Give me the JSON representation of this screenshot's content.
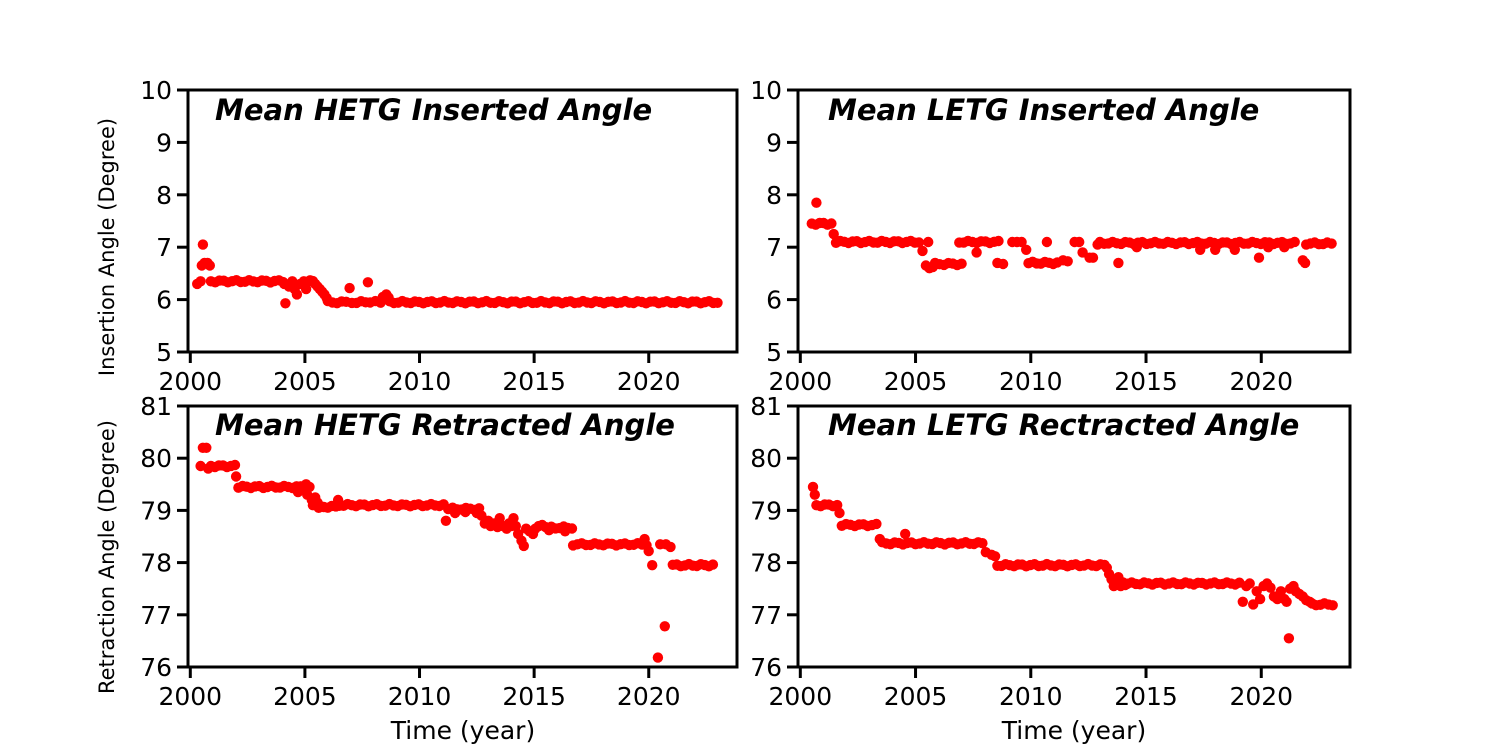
{
  "style": {
    "background": "#ffffff",
    "axis_color": "#000000",
    "marker_color": "#ff0000",
    "marker_radius": 5.2,
    "spine_width": 3,
    "tick_length": 11
  },
  "chart_data": [
    {
      "id": "hetg-inserted",
      "type": "scatter",
      "title": "Mean HETG Inserted Angle",
      "ylabel": "Insertion Angle (Degree)",
      "series_name": "Mean HETG inserted angle",
      "xlim": [
        1999.9,
        2023.85
      ],
      "ylim": [
        5,
        10
      ],
      "xticks": [
        2000,
        2005,
        2010,
        2015,
        2020
      ],
      "yticks": [
        5,
        6,
        7,
        8,
        9,
        10
      ],
      "runs": [
        [
          2000.9,
          2004.05,
          6.35
        ],
        [
          2005.1,
          2005.35,
          6.35
        ],
        [
          2006.0,
          2006.8,
          5.95
        ],
        [
          2007.05,
          2007.65,
          5.95
        ],
        [
          2007.85,
          2008.3,
          5.95
        ],
        [
          2008.7,
          2023.0,
          5.95
        ]
      ],
      "points": [
        [
          2000.3,
          6.3
        ],
        [
          2000.45,
          6.35
        ],
        [
          2000.5,
          6.65
        ],
        [
          2000.55,
          7.05
        ],
        [
          2000.62,
          6.7
        ],
        [
          2000.75,
          6.7
        ],
        [
          2000.85,
          6.65
        ],
        [
          2004.1,
          6.3
        ],
        [
          2004.15,
          5.93
        ],
        [
          2004.3,
          6.25
        ],
        [
          2004.45,
          6.35
        ],
        [
          2004.55,
          6.2
        ],
        [
          2004.65,
          6.1
        ],
        [
          2004.8,
          6.3
        ],
        [
          2004.95,
          6.35
        ],
        [
          2005.05,
          6.2
        ],
        [
          2005.45,
          6.3
        ],
        [
          2005.55,
          6.25
        ],
        [
          2005.65,
          6.2
        ],
        [
          2005.75,
          6.15
        ],
        [
          2005.85,
          6.1
        ],
        [
          2005.95,
          6.03
        ],
        [
          2006.95,
          6.22
        ],
        [
          2007.75,
          6.33
        ],
        [
          2008.4,
          6.05
        ],
        [
          2008.55,
          6.1
        ],
        [
          2008.65,
          6.04
        ]
      ]
    },
    {
      "id": "letg-inserted",
      "type": "scatter",
      "title": "Mean LETG Inserted Angle",
      "ylabel": "Insertion Angle (Degree)",
      "series_name": "Mean LETG inserted angle",
      "xlim": [
        1999.9,
        2023.85
      ],
      "ylim": [
        5,
        10
      ],
      "xticks": [
        2000,
        2005,
        2010,
        2015,
        2020
      ],
      "yticks": [
        5,
        6,
        7,
        8,
        9,
        10
      ],
      "runs": [
        [
          2000.5,
          2001.35,
          7.45
        ],
        [
          2001.55,
          2005.15,
          7.1
        ],
        [
          2005.85,
          2007.0,
          6.68
        ],
        [
          2006.9,
          2008.6,
          7.1
        ],
        [
          2009.9,
          2011.15,
          6.7
        ],
        [
          2013.0,
          2021.45,
          7.08
        ],
        [
          2021.95,
          2023.05,
          7.07
        ]
      ],
      "points": [
        [
          2000.7,
          7.85
        ],
        [
          2001.45,
          7.25
        ],
        [
          2005.3,
          6.93
        ],
        [
          2005.45,
          6.65
        ],
        [
          2005.55,
          7.1
        ],
        [
          2005.6,
          6.6
        ],
        [
          2005.75,
          6.62
        ],
        [
          2007.65,
          6.9
        ],
        [
          2008.55,
          6.7
        ],
        [
          2008.8,
          6.68
        ],
        [
          2009.2,
          7.1
        ],
        [
          2009.4,
          7.1
        ],
        [
          2009.6,
          7.1
        ],
        [
          2009.8,
          6.95
        ],
        [
          2010.7,
          7.1
        ],
        [
          2011.4,
          6.75
        ],
        [
          2011.6,
          6.73
        ],
        [
          2011.9,
          7.1
        ],
        [
          2012.1,
          7.1
        ],
        [
          2012.25,
          6.9
        ],
        [
          2012.55,
          6.8
        ],
        [
          2012.7,
          6.8
        ],
        [
          2012.9,
          7.05
        ],
        [
          2013.8,
          6.7
        ],
        [
          2014.6,
          7.0
        ],
        [
          2017.35,
          6.95
        ],
        [
          2018.0,
          6.95
        ],
        [
          2018.85,
          6.95
        ],
        [
          2019.9,
          6.8
        ],
        [
          2020.3,
          7.0
        ],
        [
          2021.0,
          7.0
        ],
        [
          2021.8,
          6.75
        ],
        [
          2021.9,
          6.7
        ]
      ]
    },
    {
      "id": "hetg-retracted",
      "type": "scatter",
      "title": "Mean HETG Retracted Angle",
      "ylabel": "Retraction Angle (Degree)",
      "xlabel": "Time (year)",
      "series_name": "Mean HETG retracted angle",
      "xlim": [
        1999.9,
        2023.85
      ],
      "ylim": [
        76,
        81
      ],
      "xticks": [
        2000,
        2005,
        2010,
        2015,
        2020
      ],
      "yticks": [
        76,
        77,
        78,
        79,
        80,
        81
      ],
      "runs": [
        [
          2000.9,
          2001.95,
          79.85
        ],
        [
          2002.1,
          2005.0,
          79.45
        ],
        [
          2005.65,
          2006.35,
          79.07
        ],
        [
          2006.5,
          2011.05,
          79.1
        ],
        [
          2011.25,
          2012.6,
          79.03
        ],
        [
          2015.75,
          2016.65,
          78.67
        ],
        [
          2016.7,
          2019.9,
          78.35
        ],
        [
          2021.05,
          2022.8,
          77.95
        ]
      ],
      "points": [
        [
          2000.45,
          79.85
        ],
        [
          2000.55,
          80.2
        ],
        [
          2000.7,
          80.2
        ],
        [
          2000.78,
          79.8
        ],
        [
          2002.0,
          79.65
        ],
        [
          2004.7,
          79.35
        ],
        [
          2005.05,
          79.5
        ],
        [
          2005.1,
          79.3
        ],
        [
          2005.2,
          79.45
        ],
        [
          2005.3,
          79.2
        ],
        [
          2005.35,
          79.1
        ],
        [
          2005.45,
          79.25
        ],
        [
          2005.55,
          79.15
        ],
        [
          2005.6,
          79.05
        ],
        [
          2006.45,
          79.2
        ],
        [
          2011.15,
          78.8
        ],
        [
          2011.55,
          78.95
        ],
        [
          2012.0,
          78.97
        ],
        [
          2012.5,
          78.95
        ],
        [
          2012.7,
          78.9
        ],
        [
          2012.85,
          78.75
        ],
        [
          2013.0,
          78.8
        ],
        [
          2013.1,
          78.7
        ],
        [
          2013.25,
          78.75
        ],
        [
          2013.4,
          78.68
        ],
        [
          2013.5,
          78.85
        ],
        [
          2013.65,
          78.7
        ],
        [
          2013.8,
          78.65
        ],
        [
          2013.9,
          78.75
        ],
        [
          2014.0,
          78.7
        ],
        [
          2014.1,
          78.85
        ],
        [
          2014.2,
          78.7
        ],
        [
          2014.3,
          78.55
        ],
        [
          2014.45,
          78.42
        ],
        [
          2014.55,
          78.32
        ],
        [
          2014.65,
          78.65
        ],
        [
          2014.8,
          78.6
        ],
        [
          2014.95,
          78.55
        ],
        [
          2015.05,
          78.65
        ],
        [
          2015.2,
          78.7
        ],
        [
          2015.35,
          78.72
        ],
        [
          2015.5,
          78.68
        ],
        [
          2015.65,
          78.62
        ],
        [
          2016.35,
          78.6
        ],
        [
          2019.82,
          78.45
        ],
        [
          2020.0,
          78.22
        ],
        [
          2020.15,
          77.95
        ],
        [
          2020.5,
          78.35
        ],
        [
          2020.75,
          78.35
        ],
        [
          2020.95,
          78.3
        ],
        [
          2020.4,
          76.18
        ],
        [
          2020.7,
          76.78
        ]
      ]
    },
    {
      "id": "letg-retracted",
      "type": "scatter",
      "title": "Mean LETG Rectracted Angle",
      "ylabel": "Retraction Angle (Degree)",
      "xlabel": "Time (year)",
      "series_name": "Mean LETG retracted angle",
      "xlim": [
        1999.9,
        2023.85
      ],
      "ylim": [
        76,
        81
      ],
      "xticks": [
        2000,
        2005,
        2010,
        2015,
        2020
      ],
      "yticks": [
        76,
        77,
        78,
        79,
        80,
        81
      ],
      "runs": [
        [
          2000.7,
          2001.6,
          79.1
        ],
        [
          2001.8,
          2003.3,
          78.72
        ],
        [
          2003.55,
          2007.9,
          78.37
        ],
        [
          2008.55,
          2013.2,
          77.95
        ],
        [
          2014.2,
          2019.05,
          77.6
        ],
        [
          2022.2,
          2023.1,
          77.2
        ]
      ],
      "points": [
        [
          2000.55,
          79.45
        ],
        [
          2000.63,
          79.3
        ],
        [
          2001.7,
          78.95
        ],
        [
          2003.45,
          78.45
        ],
        [
          2004.55,
          78.55
        ],
        [
          2008.05,
          78.2
        ],
        [
          2008.3,
          78.15
        ],
        [
          2008.45,
          78.12
        ],
        [
          2013.3,
          77.9
        ],
        [
          2013.4,
          77.78
        ],
        [
          2013.5,
          77.68
        ],
        [
          2013.6,
          77.55
        ],
        [
          2013.7,
          77.62
        ],
        [
          2013.8,
          77.72
        ],
        [
          2013.9,
          77.55
        ],
        [
          2014.0,
          77.62
        ],
        [
          2014.1,
          77.57
        ],
        [
          2019.2,
          77.25
        ],
        [
          2019.35,
          77.55
        ],
        [
          2019.5,
          77.6
        ],
        [
          2019.65,
          77.2
        ],
        [
          2019.8,
          77.45
        ],
        [
          2019.95,
          77.3
        ],
        [
          2020.1,
          77.55
        ],
        [
          2020.25,
          77.6
        ],
        [
          2020.4,
          77.52
        ],
        [
          2020.55,
          77.35
        ],
        [
          2020.7,
          77.3
        ],
        [
          2020.85,
          77.45
        ],
        [
          2021.0,
          77.3
        ],
        [
          2021.1,
          77.25
        ],
        [
          2021.25,
          77.5
        ],
        [
          2021.4,
          77.55
        ],
        [
          2021.5,
          77.45
        ],
        [
          2021.65,
          77.4
        ],
        [
          2021.8,
          77.35
        ],
        [
          2021.2,
          76.55
        ],
        [
          2021.95,
          77.28
        ],
        [
          2022.1,
          77.25
        ]
      ]
    }
  ]
}
